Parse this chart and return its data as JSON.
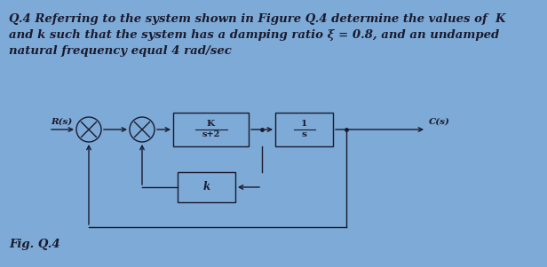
{
  "bg_color": "#7daad6",
  "title_color": "#1a1a2e",
  "title_lines": [
    "Q.4 Referring to the system shown in Figure Q.4 determine the values of  K",
    "and k such that the system has a damping ratio ξ = 0.8, and an undamped",
    "natural frequency equal 4 rad/sec"
  ],
  "title_fontsize": 9.5,
  "fig_label": "Fig. Q.4",
  "fig_label_fontsize": 9.5,
  "r_label": "R(s)",
  "c_label": "C(s)",
  "block1_top": "K",
  "block1_bot": "s+2",
  "block2_top": "1",
  "block2_bot": "s",
  "block3_label": "k",
  "lw": 1.0
}
